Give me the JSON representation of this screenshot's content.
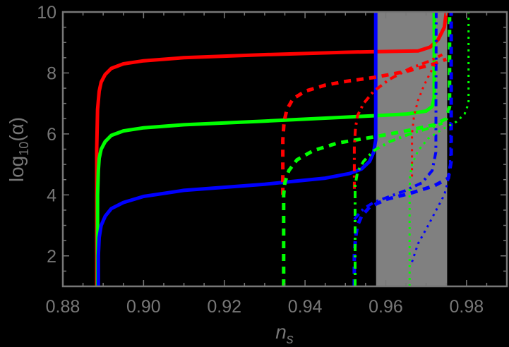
{
  "chart_data": {
    "type": "line",
    "title": "",
    "xlabel": "n_s",
    "ylabel": "log10(α)",
    "xlim": [
      0.88,
      0.99
    ],
    "ylim": [
      1,
      10
    ],
    "xticks": [
      0.88,
      0.9,
      0.92,
      0.94,
      0.96,
      0.98
    ],
    "xtick_labels": [
      "0.88",
      "0.90",
      "0.92",
      "0.94",
      "0.96",
      "0.98"
    ],
    "yticks": [
      2,
      4,
      6,
      8,
      10
    ],
    "ytick_labels": [
      "2",
      "4",
      "6",
      "8",
      "10"
    ],
    "grid": false,
    "legend": null,
    "background": "#000000",
    "axis_color": "#777777",
    "shaded_band": {
      "x": [
        0.9576,
        0.9752
      ],
      "color": "#808080"
    },
    "series": [
      {
        "name": "red-solid",
        "color": "#ff0000",
        "style": "solid",
        "width": 5,
        "x": [
          0.8884,
          0.8884,
          0.8886,
          0.889,
          0.8895,
          0.8905,
          0.892,
          0.895,
          0.9,
          0.91,
          0.93,
          0.95,
          0.9575,
          0.968,
          0.971,
          0.973,
          0.9745,
          0.975
        ],
        "y": [
          1,
          5.5,
          6.8,
          7.4,
          7.7,
          7.95,
          8.15,
          8.3,
          8.4,
          8.5,
          8.6,
          8.68,
          8.7,
          8.72,
          8.85,
          9.1,
          9.5,
          10
        ]
      },
      {
        "name": "green-solid",
        "color": "#00ff00",
        "style": "solid",
        "width": 5,
        "x": [
          0.8886,
          0.8886,
          0.8888,
          0.889,
          0.8895,
          0.8905,
          0.892,
          0.895,
          0.9,
          0.91,
          0.93,
          0.95,
          0.9575,
          0.965,
          0.97,
          0.9715,
          0.972,
          0.972
        ],
        "y": [
          1,
          4.0,
          4.8,
          5.2,
          5.5,
          5.75,
          5.95,
          6.1,
          6.2,
          6.3,
          6.42,
          6.55,
          6.6,
          6.65,
          6.75,
          6.9,
          7.2,
          10
        ]
      },
      {
        "name": "blue-solid",
        "color": "#0000ff",
        "style": "solid",
        "width": 5,
        "x": [
          0.8888,
          0.8888,
          0.889,
          0.8895,
          0.8905,
          0.892,
          0.895,
          0.9,
          0.91,
          0.93,
          0.945,
          0.951,
          0.954,
          0.956,
          0.957,
          0.9575,
          0.9575
        ],
        "y": [
          1,
          2.0,
          2.6,
          3.0,
          3.3,
          3.55,
          3.75,
          3.95,
          4.15,
          4.35,
          4.55,
          4.7,
          4.85,
          5.1,
          5.4,
          5.8,
          10
        ]
      },
      {
        "name": "red-dashed",
        "color": "#ff0000",
        "style": "dashed",
        "width": 5,
        "x": [
          0.9345,
          0.9345,
          0.9348,
          0.9355,
          0.937,
          0.94,
          0.945,
          0.95,
          0.957,
          0.965,
          0.972,
          0.975
        ],
        "y": [
          4.0,
          5.8,
          6.4,
          6.8,
          7.15,
          7.4,
          7.6,
          7.72,
          7.85,
          8.05,
          8.3,
          8.45
        ]
      },
      {
        "name": "green-dashed",
        "color": "#00ff00",
        "style": "dashed",
        "width": 5,
        "x": [
          0.9347,
          0.9347,
          0.935,
          0.936,
          0.938,
          0.942,
          0.948,
          0.957,
          0.965,
          0.972,
          0.975,
          0.9758,
          0.9758
        ],
        "y": [
          1,
          4.0,
          4.4,
          4.8,
          5.15,
          5.45,
          5.7,
          5.9,
          6.1,
          6.3,
          6.5,
          6.9,
          10
        ]
      },
      {
        "name": "blue-dashed",
        "color": "#0000ff",
        "style": "dashed",
        "width": 5,
        "x": [
          0.9522,
          0.9522,
          0.9525,
          0.953,
          0.954,
          0.956,
          0.96,
          0.966,
          0.972,
          0.9755,
          0.9762,
          0.9762
        ],
        "y": [
          1,
          2.0,
          2.6,
          3.0,
          3.3,
          3.6,
          3.85,
          4.05,
          4.3,
          4.55,
          5.1,
          10
        ]
      },
      {
        "name": "red-dashdot",
        "color": "#ff0000",
        "style": "dashdot",
        "width": 4,
        "x": [
          0.9522,
          0.9522,
          0.9525,
          0.953,
          0.9545,
          0.957,
          0.961,
          0.966,
          0.971,
          0.974
        ],
        "y": [
          4.2,
          5.6,
          6.2,
          6.6,
          7.0,
          7.4,
          7.8,
          8.15,
          8.4,
          8.6
        ]
      },
      {
        "name": "green-dashdot",
        "color": "#00ff00",
        "style": "dashdot",
        "width": 4,
        "x": [
          0.9524,
          0.9524,
          0.953,
          0.9545,
          0.957,
          0.961,
          0.966,
          0.971,
          0.974
        ],
        "y": [
          1,
          4.3,
          4.75,
          5.1,
          5.45,
          5.75,
          6.0,
          6.2,
          6.35
        ]
      },
      {
        "name": "blue-dashdot",
        "color": "#0000ff",
        "style": "dashdot",
        "width": 4,
        "x": [
          0.9522,
          0.9545,
          0.957,
          0.961,
          0.965,
          0.969,
          0.9715,
          0.9724,
          0.9725
        ],
        "y": [
          3.2,
          3.55,
          3.75,
          3.95,
          4.15,
          4.4,
          4.8,
          5.4,
          10
        ]
      },
      {
        "name": "red-dotted",
        "color": "#ff0000",
        "style": "dotted",
        "width": 3,
        "x": [
          0.9665,
          0.9665,
          0.967,
          0.968,
          0.9695,
          0.971,
          0.9725
        ],
        "y": [
          4.6,
          6.0,
          6.6,
          7.1,
          7.6,
          8.0,
          8.35
        ]
      },
      {
        "name": "green-dotted",
        "color": "#00ff00",
        "style": "dotted",
        "width": 3,
        "x": [
          0.9659,
          0.9659,
          0.966,
          0.9665,
          0.968,
          0.9705,
          0.974,
          0.9775,
          0.9795,
          0.9805,
          0.9805
        ],
        "y": [
          1,
          4.2,
          4.6,
          5.0,
          5.45,
          5.85,
          6.15,
          6.4,
          6.65,
          7.0,
          10
        ]
      },
      {
        "name": "blue-dotted",
        "color": "#0000ff",
        "style": "dotted",
        "width": 3,
        "x": [
          0.9665,
          0.968,
          0.9705,
          0.9725,
          0.9745,
          0.9755,
          0.976,
          0.976
        ],
        "y": [
          1.8,
          2.4,
          3.0,
          3.5,
          4.0,
          4.5,
          5.2,
          6.5
        ]
      }
    ]
  }
}
